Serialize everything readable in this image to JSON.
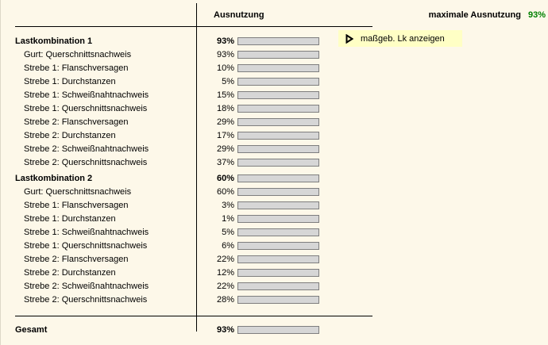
{
  "header": {
    "column_label": "Ausnutzung",
    "max_label": "maximale Ausnutzung",
    "max_value": "93%"
  },
  "action_button": {
    "label": "maßgeb. Lk anzeigen",
    "icon": "play-triangle-icon"
  },
  "groups": [
    {
      "label": "Lastkombination 1",
      "value": 93,
      "rows": [
        {
          "label": "Gurt: Querschnittsnachweis",
          "value": 93
        },
        {
          "label": "Strebe 1: Flanschversagen",
          "value": 10
        },
        {
          "label": "Strebe 1: Durchstanzen",
          "value": 5
        },
        {
          "label": "Strebe 1: Schweißnahtnachweis",
          "value": 15
        },
        {
          "label": "Strebe 1: Querschnittsnachweis",
          "value": 18
        },
        {
          "label": "Strebe 2: Flanschversagen",
          "value": 29
        },
        {
          "label": "Strebe 2: Durchstanzen",
          "value": 17
        },
        {
          "label": "Strebe 2: Schweißnahtnachweis",
          "value": 29
        },
        {
          "label": "Strebe 2: Querschnittsnachweis",
          "value": 37
        }
      ]
    },
    {
      "label": "Lastkombination 2",
      "value": 60,
      "rows": [
        {
          "label": "Gurt: Querschnittsnachweis",
          "value": 60
        },
        {
          "label": "Strebe 1: Flanschversagen",
          "value": 3
        },
        {
          "label": "Strebe 1: Durchstanzen",
          "value": 1
        },
        {
          "label": "Strebe 1: Schweißnahtnachweis",
          "value": 5
        },
        {
          "label": "Strebe 1: Querschnittsnachweis",
          "value": 6
        },
        {
          "label": "Strebe 2: Flanschversagen",
          "value": 22
        },
        {
          "label": "Strebe 2: Durchstanzen",
          "value": 12
        },
        {
          "label": "Strebe 2: Schweißnahtnachweis",
          "value": 22
        },
        {
          "label": "Strebe 2: Querschnittsnachweis",
          "value": 28
        }
      ]
    }
  ],
  "footer": {
    "label": "Gesamt",
    "value": 93
  },
  "colors": {
    "background": "#FDF8E9",
    "accent_green_text": "#008000",
    "bar_green_bright": "#12CC12",
    "bar_green_dark": "#053F05",
    "bar_track": "#D6D6D6",
    "bar_border": "#7E7E7E",
    "button_background": "#FFFFC5",
    "divider": "#000000"
  }
}
